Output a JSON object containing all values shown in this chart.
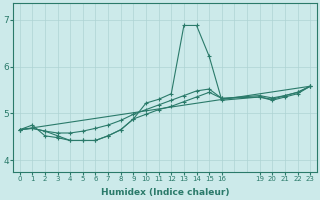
{
  "xlabel": "Humidex (Indice chaleur)",
  "background_color": "#cceaea",
  "line_color": "#2a7a6a",
  "grid_color": "#aed4d4",
  "xlim": [
    -0.5,
    23.5
  ],
  "ylim": [
    3.75,
    7.35
  ],
  "yticks": [
    4,
    5,
    6,
    7
  ],
  "xticks": [
    0,
    1,
    2,
    3,
    4,
    5,
    6,
    7,
    8,
    9,
    10,
    11,
    12,
    13,
    14,
    15,
    16,
    19,
    20,
    21,
    22,
    23
  ],
  "lines": [
    {
      "x": [
        0,
        1,
        2,
        3,
        4,
        5,
        6,
        7,
        8,
        9,
        10,
        11,
        12,
        13,
        14,
        15,
        16,
        19,
        20,
        21,
        22,
        23
      ],
      "y": [
        4.65,
        4.75,
        4.52,
        4.48,
        4.42,
        4.42,
        4.42,
        4.52,
        4.65,
        4.88,
        5.22,
        5.3,
        5.42,
        6.88,
        6.88,
        6.22,
        5.28,
        5.35,
        5.28,
        5.35,
        5.42,
        5.58
      ]
    },
    {
      "x": [
        0,
        1,
        2,
        3,
        4,
        5,
        6,
        7,
        8,
        9,
        10,
        11,
        12,
        13,
        14,
        15,
        16,
        19,
        20,
        21,
        22,
        23
      ],
      "y": [
        4.65,
        4.68,
        4.62,
        4.58,
        4.58,
        4.62,
        4.68,
        4.75,
        4.85,
        4.98,
        5.08,
        5.18,
        5.28,
        5.38,
        5.48,
        5.52,
        5.32,
        5.38,
        5.33,
        5.38,
        5.45,
        5.58
      ]
    },
    {
      "x": [
        0,
        1,
        2,
        3,
        4,
        5,
        6,
        7,
        8,
        9,
        10,
        11,
        12,
        13,
        14,
        15,
        16,
        19,
        20,
        21,
        22,
        23
      ],
      "y": [
        4.65,
        4.68,
        4.62,
        4.52,
        4.42,
        4.42,
        4.42,
        4.52,
        4.65,
        4.88,
        4.98,
        5.08,
        5.15,
        5.25,
        5.35,
        5.45,
        5.32,
        5.35,
        5.3,
        5.38,
        5.45,
        5.58
      ]
    },
    {
      "x": [
        0,
        23
      ],
      "y": [
        4.65,
        5.58
      ]
    }
  ]
}
